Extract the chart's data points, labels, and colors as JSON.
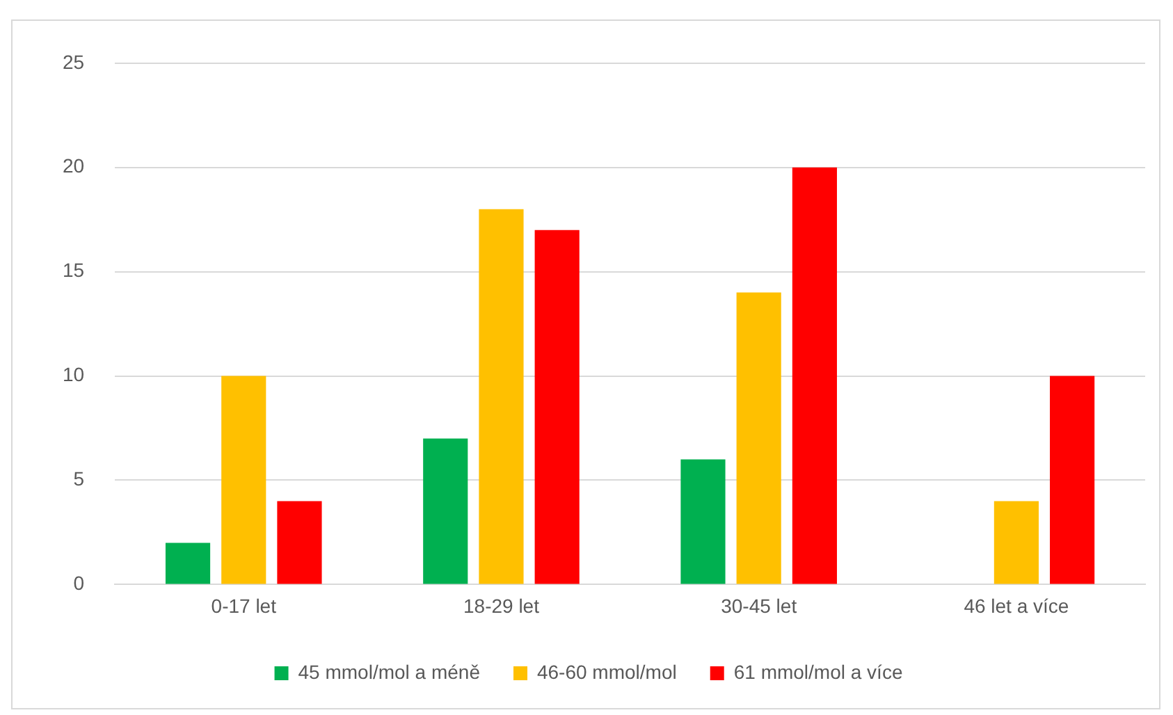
{
  "chart_data": {
    "type": "bar",
    "categories": [
      "0-17 let",
      "18-29 let",
      "30-45 let",
      "46 let a více"
    ],
    "series": [
      {
        "name": "45 mmol/mol a méně",
        "color": "#00b050",
        "values": [
          2,
          7,
          6,
          0
        ]
      },
      {
        "name": "46-60 mmol/mol",
        "color": "#ffc000",
        "values": [
          10,
          18,
          14,
          4
        ]
      },
      {
        "name": "61 mmol/mol a více",
        "color": "#ff0000",
        "values": [
          4,
          17,
          20,
          10
        ]
      }
    ],
    "ylim": [
      0,
      25
    ],
    "yticks": [
      0,
      5,
      10,
      15,
      20,
      25
    ],
    "grid": "y",
    "legend": "bottom"
  }
}
